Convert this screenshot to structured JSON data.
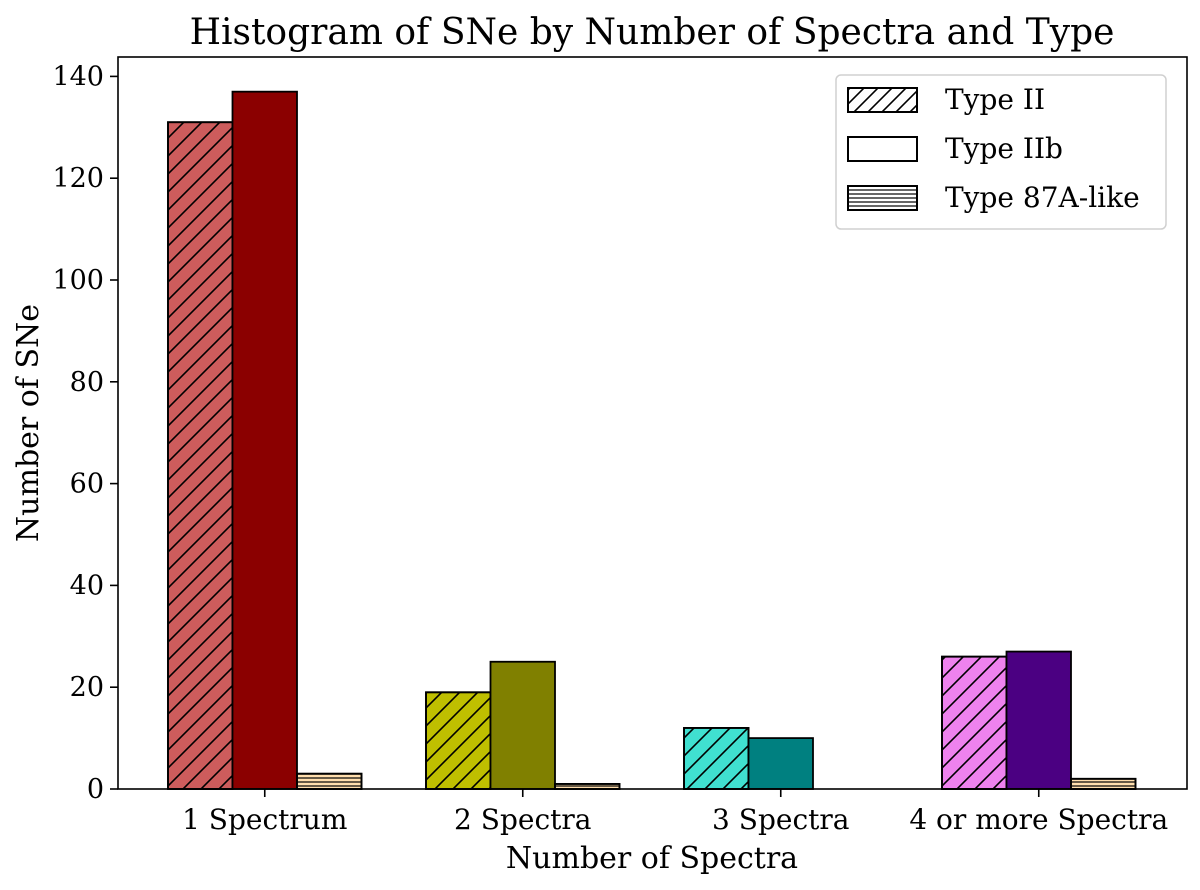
{
  "chart_data": {
    "type": "bar",
    "title": "Histogram of SNe by Number of Spectra and Type",
    "xlabel": "Number of Spectra",
    "ylabel": "Number of SNe",
    "ylim": [
      0,
      140
    ],
    "yticks": [
      0,
      20,
      40,
      60,
      80,
      100,
      120,
      140
    ],
    "grid": false,
    "legend_position": "top-right",
    "categories": [
      "1 Spectrum",
      "2 Spectra",
      "3 Spectra",
      "4 or more Spectra"
    ],
    "series": [
      {
        "name": "Type II",
        "hatch": "diagonal",
        "values": [
          131,
          19,
          12,
          26
        ],
        "colors": [
          "#cd5c5c",
          "#bfbf00",
          "#40e0d0",
          "#ee82ee"
        ]
      },
      {
        "name": "Type IIb",
        "hatch": "none",
        "values": [
          137,
          25,
          10,
          27
        ],
        "colors": [
          "#8b0000",
          "#808000",
          "#008080",
          "#4b0082"
        ]
      },
      {
        "name": "Type 87A-like",
        "hatch": "horizontal",
        "values": [
          3,
          1,
          0,
          2
        ],
        "colors": [
          "#ffdead",
          "#ffdead",
          "#ffdead",
          "#ffdead"
        ]
      }
    ]
  }
}
